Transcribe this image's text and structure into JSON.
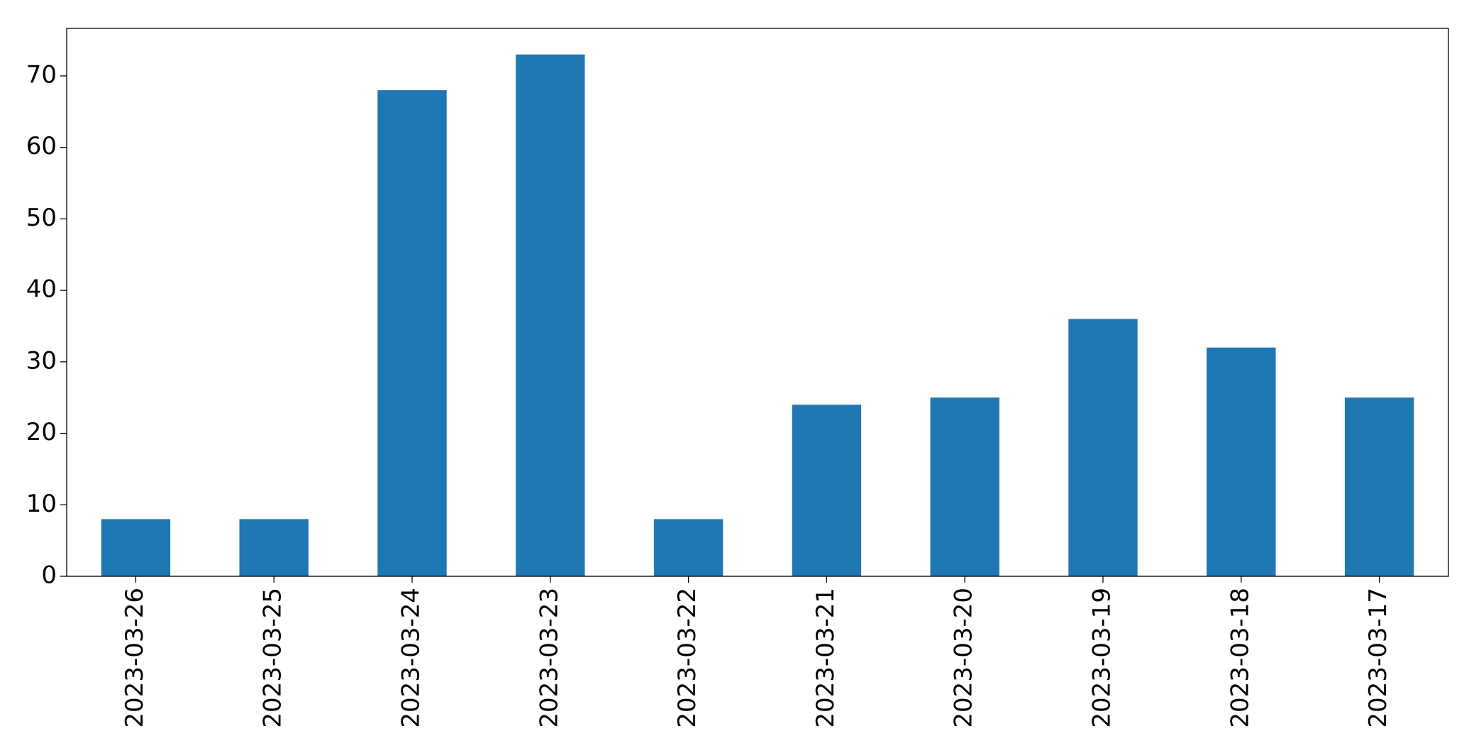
{
  "chart_data": {
    "type": "bar",
    "categories": [
      "2023-03-26",
      "2023-03-25",
      "2023-03-24",
      "2023-03-23",
      "2023-03-22",
      "2023-03-21",
      "2023-03-20",
      "2023-03-19",
      "2023-03-18",
      "2023-03-17"
    ],
    "values": [
      8,
      8,
      68,
      73,
      8,
      24,
      25,
      36,
      32,
      25
    ],
    "color": "#1f77b4",
    "ylim": [
      0,
      76.65
    ],
    "yticks": [
      0,
      10,
      20,
      30,
      40,
      50,
      60,
      70
    ],
    "grid": false
  }
}
